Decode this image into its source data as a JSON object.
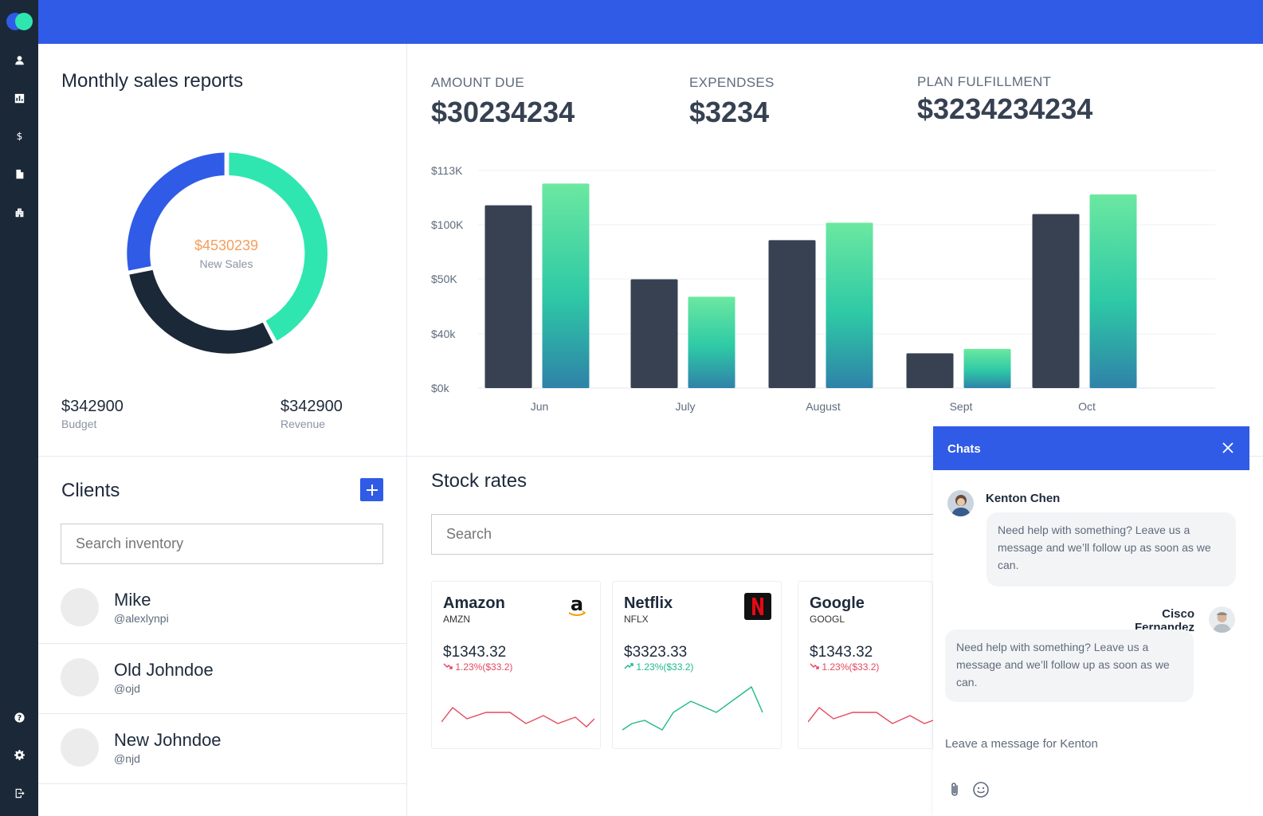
{
  "sidebar": {
    "items": [
      {
        "icon": "user-icon"
      },
      {
        "icon": "chart-icon"
      },
      {
        "icon": "dollar-icon"
      },
      {
        "icon": "document-icon"
      },
      {
        "icon": "building-icon"
      }
    ],
    "bottom": [
      {
        "icon": "help-icon"
      },
      {
        "icon": "gear-icon"
      },
      {
        "icon": "logout-icon"
      }
    ]
  },
  "sales": {
    "title": "Monthly sales reports",
    "center_value": "$4530239",
    "center_label": "New Sales",
    "budget_value": "$342900",
    "budget_label": "Budget",
    "revenue_value": "$342900",
    "revenue_label": "Revenue",
    "colors": {
      "blue": "#2f5be6",
      "green": "#2fe6b0",
      "navy": "#1b2838"
    }
  },
  "kpis": {
    "amount_due_label": "AMOUNT DUE",
    "amount_due_value": "$30234234",
    "expenses_label": "EXPENDSES",
    "expenses_value": "$3234",
    "plan_label": "PLAN FULFILLMENT",
    "plan_value": "$3234234234"
  },
  "chart_data": {
    "type": "bar",
    "categories": [
      "Jun",
      "July",
      "August",
      "Sept",
      "Oct"
    ],
    "y_ticks": [
      "$0k",
      "$40k",
      "$50K",
      "$100K",
      "$113K"
    ],
    "series": [
      {
        "values": [
          0.84,
          0.5,
          0.68,
          0.16,
          0.8
        ],
        "color": "#374151"
      },
      {
        "values": [
          0.94,
          0.42,
          0.76,
          0.18,
          0.89
        ],
        "color": "#3ee0a0"
      }
    ],
    "grid": true
  },
  "clients": {
    "title": "Clients",
    "add_label": "+",
    "search_placeholder": "Search inventory",
    "list": [
      {
        "name": "Mike",
        "handle": "@alexlynpi"
      },
      {
        "name": "Old Johndoe",
        "handle": "@ojd"
      },
      {
        "name": "New Johndoe",
        "handle": "@njd"
      }
    ]
  },
  "stocks": {
    "title": "Stock rates",
    "search_placeholder": "Search",
    "cards": [
      {
        "name": "Amazon",
        "ticker": "AMZN",
        "price": "$1343.32",
        "change": "1.23%($33.2)",
        "trend": "down",
        "logo": "amazon-logo-icon"
      },
      {
        "name": "Netflix",
        "ticker": "NFLX",
        "price": "$3323.33",
        "change": "1.23%($33.2)",
        "trend": "up",
        "logo": "netflix-logo-icon"
      },
      {
        "name": "Google",
        "ticker": "GOOGL",
        "price": "$1343.32",
        "change": "1.23%($33.2)",
        "trend": "down",
        "logo": ""
      }
    ],
    "colors": {
      "down": "#e5485f",
      "up": "#1fb98a"
    }
  },
  "chat": {
    "title": "Chats",
    "messages": [
      {
        "name": "Kenton Chen",
        "text": "Need help with something? Leave us a message and we’ll follow up as soon as we can."
      },
      {
        "name": "Cisco Fernandez",
        "text": "Need help with something? Leave us a message and we’ll follow up as soon as we can."
      }
    ],
    "input_placeholder": "Leave a message for Kenton"
  }
}
